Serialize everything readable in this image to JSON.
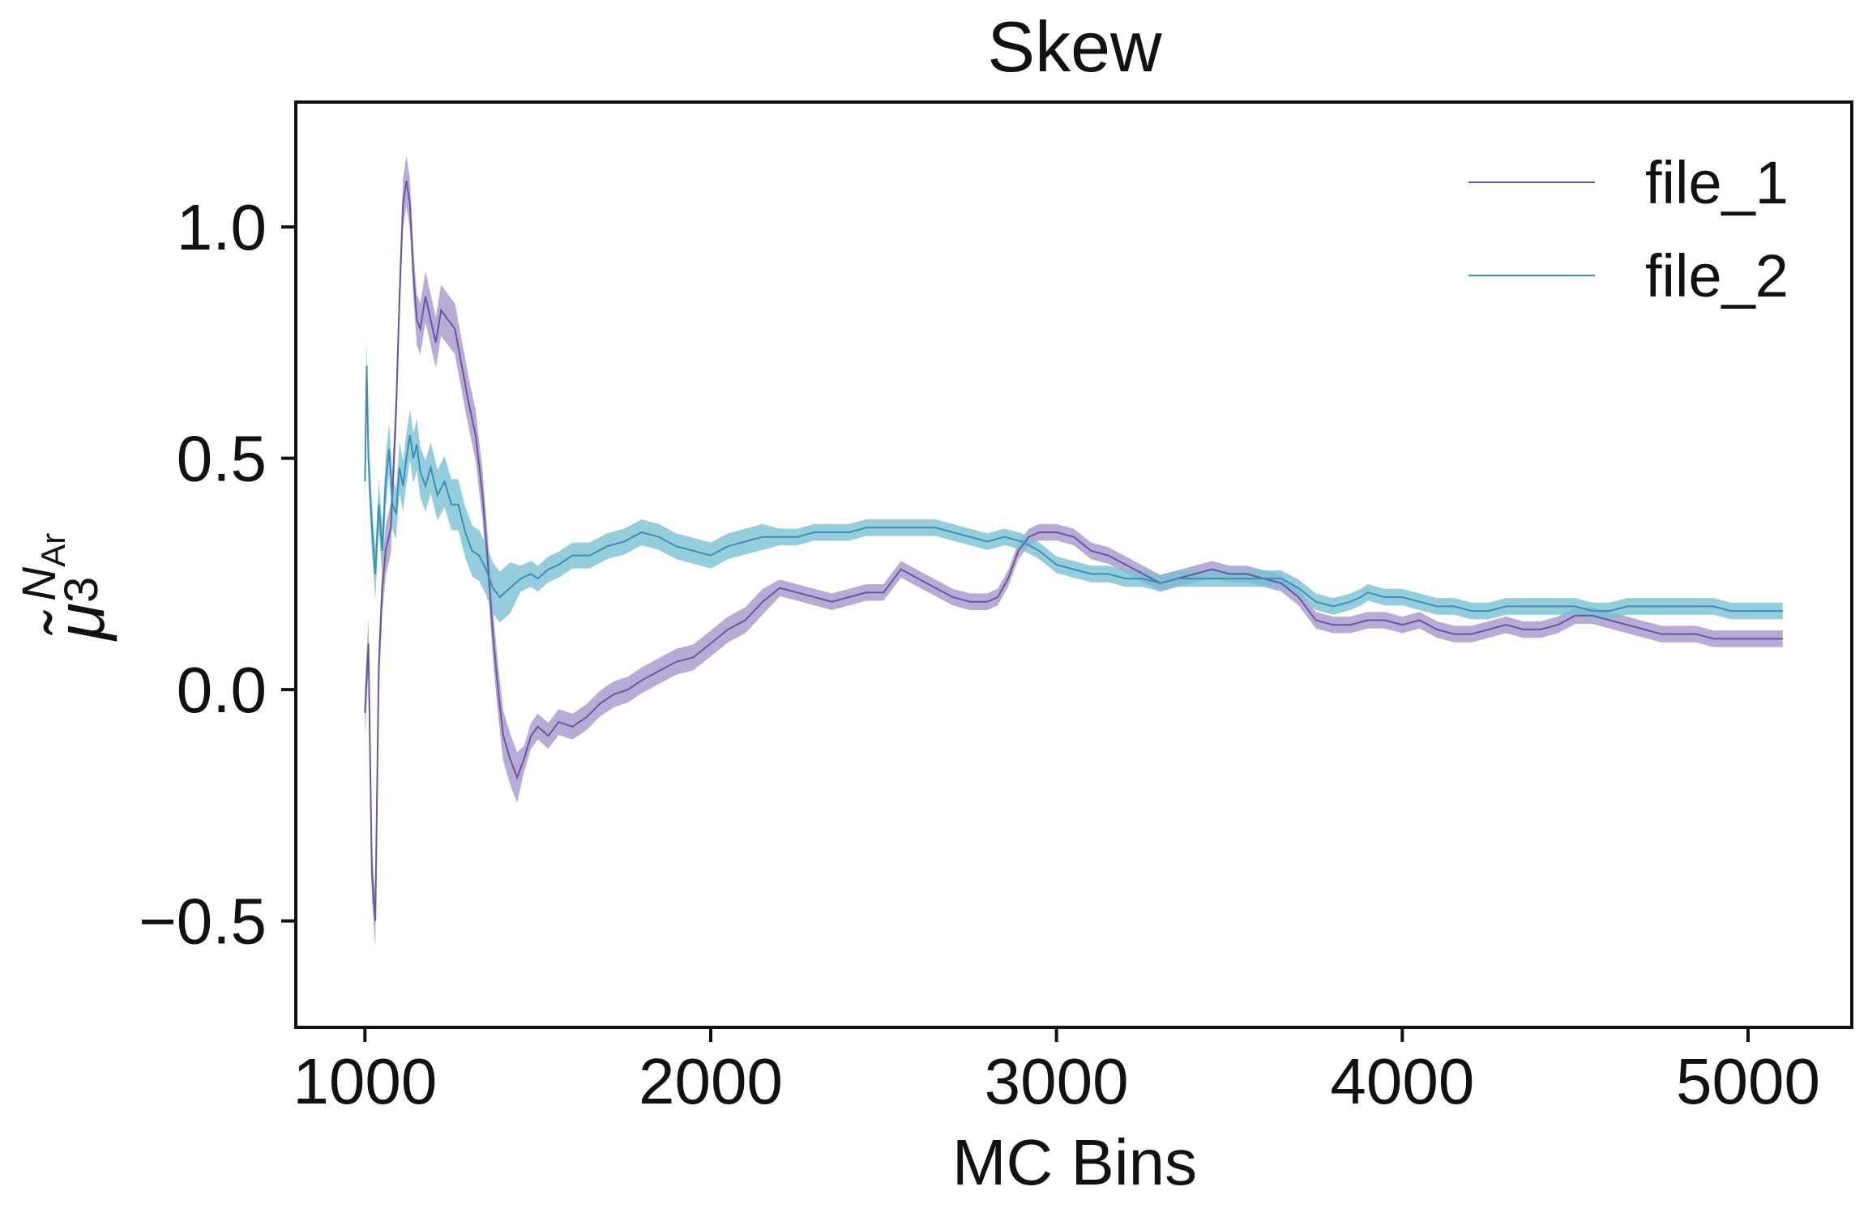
{
  "chart_data": {
    "type": "line",
    "title": "Skew",
    "xlabel": "MC Bins",
    "ylabel": {
      "base": "μ̃",
      "subscript": "3",
      "superscript": "N",
      "superscript_sub": "Ar"
    },
    "xlim": [
      800,
      5300
    ],
    "ylim": [
      -0.73,
      1.27
    ],
    "xticks": [
      1000,
      2000,
      3000,
      4000,
      5000
    ],
    "xtick_labels": [
      "1000",
      "2000",
      "3000",
      "4000",
      "5000"
    ],
    "yticks": [
      1.0,
      0.5,
      0.0,
      -0.5
    ],
    "ytick_labels": [
      "1.0",
      "0.5",
      "0.0",
      "−0.5"
    ],
    "grid": false,
    "legend": "top-right",
    "series": [
      {
        "name": "file_1",
        "color": "#6a56a0",
        "band_color": "#a696cc",
        "points": [
          [
            1000,
            -0.05
          ],
          [
            1010,
            0.1
          ],
          [
            1020,
            -0.4
          ],
          [
            1030,
            -0.5
          ],
          [
            1040,
            0.05
          ],
          [
            1050,
            0.22
          ],
          [
            1060,
            0.3
          ],
          [
            1075,
            0.35
          ],
          [
            1090,
            0.6
          ],
          [
            1100,
            0.85
          ],
          [
            1110,
            1.05
          ],
          [
            1120,
            1.1
          ],
          [
            1130,
            1.05
          ],
          [
            1140,
            0.9
          ],
          [
            1150,
            0.8
          ],
          [
            1160,
            0.78
          ],
          [
            1175,
            0.85
          ],
          [
            1190,
            0.8
          ],
          [
            1205,
            0.75
          ],
          [
            1220,
            0.82
          ],
          [
            1240,
            0.8
          ],
          [
            1260,
            0.78
          ],
          [
            1280,
            0.7
          ],
          [
            1300,
            0.62
          ],
          [
            1320,
            0.55
          ],
          [
            1340,
            0.42
          ],
          [
            1355,
            0.28
          ],
          [
            1370,
            0.12
          ],
          [
            1385,
            0.0
          ],
          [
            1400,
            -0.1
          ],
          [
            1420,
            -0.15
          ],
          [
            1440,
            -0.19
          ],
          [
            1460,
            -0.15
          ],
          [
            1480,
            -0.1
          ],
          [
            1500,
            -0.08
          ],
          [
            1530,
            -0.1
          ],
          [
            1560,
            -0.07
          ],
          [
            1600,
            -0.08
          ],
          [
            1640,
            -0.06
          ],
          [
            1680,
            -0.03
          ],
          [
            1720,
            -0.01
          ],
          [
            1760,
            0.0
          ],
          [
            1800,
            0.02
          ],
          [
            1850,
            0.04
          ],
          [
            1900,
            0.06
          ],
          [
            1950,
            0.07
          ],
          [
            2000,
            0.1
          ],
          [
            2050,
            0.13
          ],
          [
            2100,
            0.15
          ],
          [
            2150,
            0.19
          ],
          [
            2200,
            0.22
          ],
          [
            2250,
            0.21
          ],
          [
            2300,
            0.2
          ],
          [
            2350,
            0.19
          ],
          [
            2400,
            0.2
          ],
          [
            2450,
            0.21
          ],
          [
            2500,
            0.21
          ],
          [
            2550,
            0.26
          ],
          [
            2600,
            0.24
          ],
          [
            2650,
            0.22
          ],
          [
            2700,
            0.2
          ],
          [
            2750,
            0.19
          ],
          [
            2800,
            0.19
          ],
          [
            2830,
            0.2
          ],
          [
            2860,
            0.24
          ],
          [
            2890,
            0.3
          ],
          [
            2920,
            0.33
          ],
          [
            2950,
            0.34
          ],
          [
            3000,
            0.34
          ],
          [
            3050,
            0.33
          ],
          [
            3100,
            0.3
          ],
          [
            3150,
            0.29
          ],
          [
            3200,
            0.27
          ],
          [
            3250,
            0.25
          ],
          [
            3300,
            0.23
          ],
          [
            3350,
            0.24
          ],
          [
            3400,
            0.25
          ],
          [
            3450,
            0.26
          ],
          [
            3500,
            0.25
          ],
          [
            3550,
            0.25
          ],
          [
            3600,
            0.24
          ],
          [
            3650,
            0.23
          ],
          [
            3700,
            0.2
          ],
          [
            3750,
            0.15
          ],
          [
            3800,
            0.14
          ],
          [
            3850,
            0.14
          ],
          [
            3900,
            0.15
          ],
          [
            3950,
            0.15
          ],
          [
            4000,
            0.14
          ],
          [
            4050,
            0.15
          ],
          [
            4100,
            0.13
          ],
          [
            4150,
            0.12
          ],
          [
            4200,
            0.12
          ],
          [
            4250,
            0.13
          ],
          [
            4300,
            0.14
          ],
          [
            4350,
            0.13
          ],
          [
            4400,
            0.13
          ],
          [
            4450,
            0.14
          ],
          [
            4500,
            0.16
          ],
          [
            4550,
            0.16
          ],
          [
            4600,
            0.15
          ],
          [
            4650,
            0.14
          ],
          [
            4700,
            0.13
          ],
          [
            4750,
            0.12
          ],
          [
            4800,
            0.12
          ],
          [
            4850,
            0.12
          ],
          [
            4900,
            0.11
          ],
          [
            4950,
            0.11
          ],
          [
            5000,
            0.11
          ],
          [
            5050,
            0.11
          ],
          [
            5100,
            0.11
          ]
        ]
      },
      {
        "name": "file_2",
        "color": "#3a8fb5",
        "band_color": "#7cc0d4",
        "points": [
          [
            1000,
            0.45
          ],
          [
            1005,
            0.7
          ],
          [
            1010,
            0.5
          ],
          [
            1020,
            0.35
          ],
          [
            1030,
            0.25
          ],
          [
            1040,
            0.4
          ],
          [
            1050,
            0.3
          ],
          [
            1060,
            0.45
          ],
          [
            1070,
            0.52
          ],
          [
            1080,
            0.4
          ],
          [
            1090,
            0.38
          ],
          [
            1100,
            0.48
          ],
          [
            1110,
            0.44
          ],
          [
            1120,
            0.5
          ],
          [
            1130,
            0.55
          ],
          [
            1140,
            0.5
          ],
          [
            1150,
            0.53
          ],
          [
            1160,
            0.47
          ],
          [
            1175,
            0.44
          ],
          [
            1190,
            0.48
          ],
          [
            1210,
            0.42
          ],
          [
            1230,
            0.45
          ],
          [
            1250,
            0.4
          ],
          [
            1270,
            0.4
          ],
          [
            1290,
            0.34
          ],
          [
            1310,
            0.3
          ],
          [
            1330,
            0.29
          ],
          [
            1350,
            0.26
          ],
          [
            1370,
            0.22
          ],
          [
            1390,
            0.2
          ],
          [
            1420,
            0.22
          ],
          [
            1450,
            0.24
          ],
          [
            1480,
            0.25
          ],
          [
            1500,
            0.24
          ],
          [
            1530,
            0.26
          ],
          [
            1560,
            0.27
          ],
          [
            1600,
            0.29
          ],
          [
            1650,
            0.29
          ],
          [
            1700,
            0.31
          ],
          [
            1750,
            0.32
          ],
          [
            1800,
            0.34
          ],
          [
            1850,
            0.33
          ],
          [
            1900,
            0.31
          ],
          [
            1950,
            0.3
          ],
          [
            2000,
            0.29
          ],
          [
            2050,
            0.31
          ],
          [
            2100,
            0.32
          ],
          [
            2150,
            0.33
          ],
          [
            2200,
            0.33
          ],
          [
            2250,
            0.33
          ],
          [
            2300,
            0.34
          ],
          [
            2350,
            0.34
          ],
          [
            2400,
            0.34
          ],
          [
            2450,
            0.35
          ],
          [
            2500,
            0.35
          ],
          [
            2550,
            0.35
          ],
          [
            2600,
            0.35
          ],
          [
            2650,
            0.35
          ],
          [
            2700,
            0.34
          ],
          [
            2750,
            0.33
          ],
          [
            2800,
            0.32
          ],
          [
            2850,
            0.33
          ],
          [
            2900,
            0.32
          ],
          [
            2950,
            0.3
          ],
          [
            3000,
            0.27
          ],
          [
            3050,
            0.26
          ],
          [
            3100,
            0.25
          ],
          [
            3150,
            0.25
          ],
          [
            3200,
            0.24
          ],
          [
            3250,
            0.24
          ],
          [
            3300,
            0.23
          ],
          [
            3350,
            0.24
          ],
          [
            3400,
            0.24
          ],
          [
            3450,
            0.24
          ],
          [
            3500,
            0.24
          ],
          [
            3550,
            0.24
          ],
          [
            3600,
            0.24
          ],
          [
            3650,
            0.24
          ],
          [
            3700,
            0.22
          ],
          [
            3750,
            0.19
          ],
          [
            3800,
            0.18
          ],
          [
            3850,
            0.19
          ],
          [
            3880,
            0.2
          ],
          [
            3900,
            0.21
          ],
          [
            3950,
            0.2
          ],
          [
            4000,
            0.2
          ],
          [
            4050,
            0.19
          ],
          [
            4100,
            0.18
          ],
          [
            4150,
            0.18
          ],
          [
            4200,
            0.17
          ],
          [
            4250,
            0.17
          ],
          [
            4300,
            0.18
          ],
          [
            4350,
            0.18
          ],
          [
            4400,
            0.18
          ],
          [
            4450,
            0.18
          ],
          [
            4500,
            0.18
          ],
          [
            4550,
            0.17
          ],
          [
            4600,
            0.17
          ],
          [
            4650,
            0.18
          ],
          [
            4700,
            0.18
          ],
          [
            4750,
            0.18
          ],
          [
            4800,
            0.18
          ],
          [
            4850,
            0.18
          ],
          [
            4900,
            0.18
          ],
          [
            4950,
            0.17
          ],
          [
            5000,
            0.17
          ],
          [
            5050,
            0.17
          ],
          [
            5100,
            0.17
          ]
        ]
      }
    ]
  }
}
